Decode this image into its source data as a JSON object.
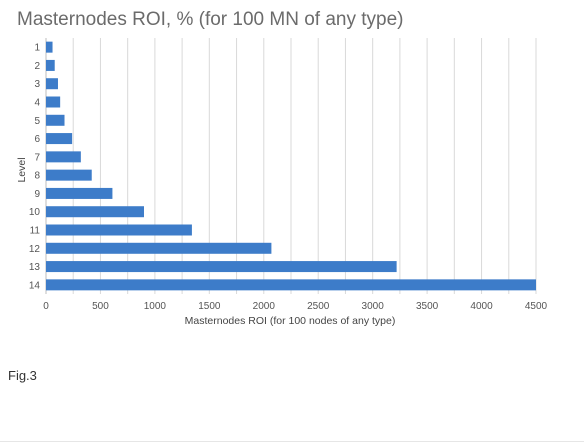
{
  "chart_data": {
    "type": "bar",
    "orientation": "horizontal",
    "title": "Masternodes ROI, % (for 100 MN of any type)",
    "xlabel": "Masternodes ROI (for 100 nodes of any type)",
    "ylabel": "Level",
    "categories": [
      "1",
      "2",
      "3",
      "4",
      "5",
      "6",
      "7",
      "8",
      "9",
      "10",
      "11",
      "12",
      "13",
      "14"
    ],
    "values": [
      60,
      80,
      110,
      130,
      170,
      240,
      320,
      420,
      610,
      900,
      1340,
      2070,
      3220,
      4500
    ],
    "xlim": [
      0,
      4500
    ],
    "xticks": [
      "0",
      "500",
      "1000",
      "1500",
      "2000",
      "2500",
      "3000",
      "3500",
      "4000",
      "4500"
    ],
    "grid": "vertical",
    "bar_color": "#3d7cc9",
    "grid_color": "#d9d9d9"
  },
  "caption": "Fig.3"
}
